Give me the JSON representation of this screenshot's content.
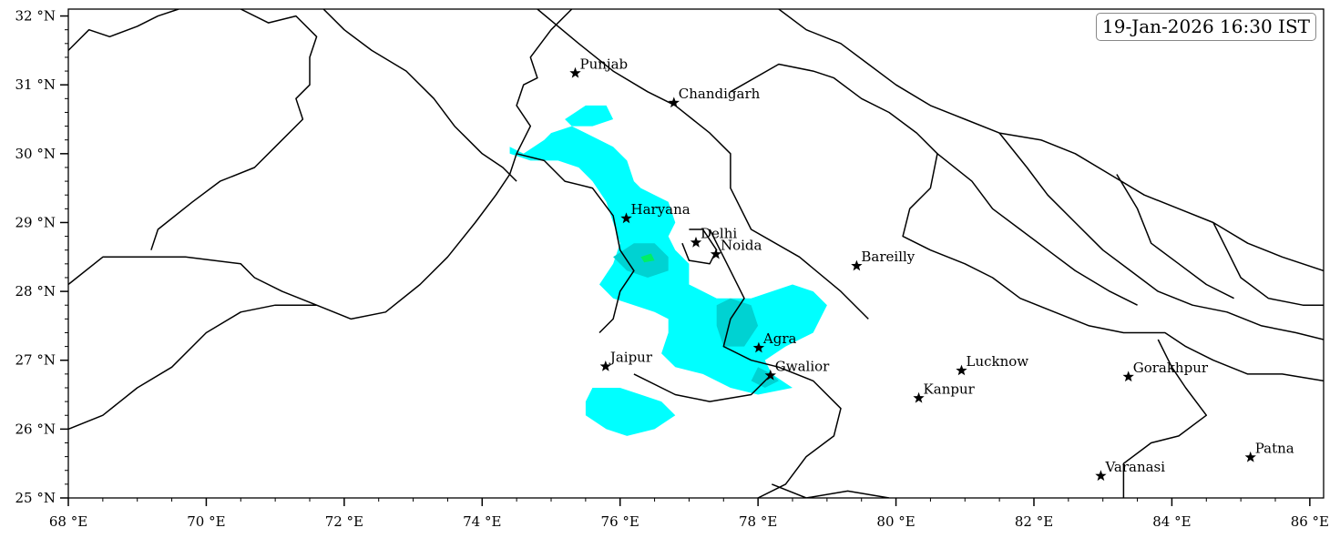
{
  "timestamp": "19-Jan-2026 16:30 IST",
  "map": {
    "lon_range": [
      68,
      86.2
    ],
    "lat_range": [
      25,
      32.1
    ],
    "x_ticks": [
      {
        "value": 68,
        "label": "68 °E"
      },
      {
        "value": 70,
        "label": "70 °E"
      },
      {
        "value": 72,
        "label": "72 °E"
      },
      {
        "value": 74,
        "label": "74 °E"
      },
      {
        "value": 76,
        "label": "76 °E"
      },
      {
        "value": 78,
        "label": "78 °E"
      },
      {
        "value": 80,
        "label": "80 °E"
      },
      {
        "value": 82,
        "label": "82 °E"
      },
      {
        "value": 84,
        "label": "84 °E"
      },
      {
        "value": 86,
        "label": "86 °E"
      }
    ],
    "y_ticks": [
      {
        "value": 25,
        "label": "25 °N"
      },
      {
        "value": 26,
        "label": "26 °N"
      },
      {
        "value": 27,
        "label": "27 °N"
      },
      {
        "value": 28,
        "label": "28 °N"
      },
      {
        "value": 29,
        "label": "29 °N"
      },
      {
        "value": 30,
        "label": "30 °N"
      },
      {
        "value": 31,
        "label": "31 °N"
      },
      {
        "value": 32,
        "label": "32 °N"
      }
    ],
    "colors": {
      "light": "#00ffff",
      "moderate": "#00d2d2",
      "heavy": "#00ee66",
      "boundary": "#000000"
    }
  },
  "cities": [
    {
      "name": "Punjab",
      "lon": 75.35,
      "lat": 31.17
    },
    {
      "name": "Chandigarh",
      "lon": 76.78,
      "lat": 30.74
    },
    {
      "name": "Haryana",
      "lon": 76.09,
      "lat": 29.06
    },
    {
      "name": "Delhi",
      "lon": 77.1,
      "lat": 28.71
    },
    {
      "name": "Noida",
      "lon": 77.39,
      "lat": 28.54
    },
    {
      "name": "Bareilly",
      "lon": 79.43,
      "lat": 28.37
    },
    {
      "name": "Agra",
      "lon": 78.01,
      "lat": 27.18
    },
    {
      "name": "Jaipur",
      "lon": 75.79,
      "lat": 26.91
    },
    {
      "name": "Gwalior",
      "lon": 78.18,
      "lat": 26.78
    },
    {
      "name": "Lucknow",
      "lon": 80.95,
      "lat": 26.85
    },
    {
      "name": "Kanpur",
      "lon": 80.33,
      "lat": 26.45
    },
    {
      "name": "Gorakhpur",
      "lon": 83.37,
      "lat": 26.76
    },
    {
      "name": "Varanasi",
      "lon": 82.97,
      "lat": 25.32
    },
    {
      "name": "Patna",
      "lon": 85.14,
      "lat": 25.59
    }
  ],
  "rain_areas": {
    "light": [
      [
        [
          74.4,
          30.1
        ],
        [
          74.6,
          30.0
        ],
        [
          74.9,
          30.2
        ],
        [
          75.0,
          30.3
        ],
        [
          75.3,
          30.4
        ],
        [
          75.5,
          30.3
        ],
        [
          75.9,
          30.1
        ],
        [
          76.1,
          29.9
        ],
        [
          76.2,
          29.6
        ],
        [
          76.3,
          29.5
        ],
        [
          76.5,
          29.4
        ],
        [
          76.7,
          29.3
        ],
        [
          76.8,
          29.0
        ],
        [
          76.7,
          28.8
        ],
        [
          76.8,
          28.6
        ],
        [
          77.0,
          28.4
        ],
        [
          77.0,
          28.1
        ],
        [
          77.4,
          27.9
        ],
        [
          77.6,
          27.9
        ],
        [
          77.9,
          27.9
        ],
        [
          78.2,
          28.0
        ],
        [
          78.5,
          28.1
        ],
        [
          78.8,
          28.0
        ],
        [
          79.0,
          27.8
        ],
        [
          78.9,
          27.6
        ],
        [
          78.8,
          27.4
        ],
        [
          78.6,
          27.3
        ],
        [
          78.4,
          27.2
        ],
        [
          78.1,
          27.0
        ],
        [
          78.2,
          26.8
        ],
        [
          78.5,
          26.6
        ],
        [
          78.0,
          26.5
        ],
        [
          77.6,
          26.6
        ],
        [
          77.2,
          26.8
        ],
        [
          76.8,
          26.9
        ],
        [
          76.6,
          27.1
        ],
        [
          76.7,
          27.4
        ],
        [
          76.7,
          27.6
        ],
        [
          76.5,
          27.7
        ],
        [
          76.2,
          27.8
        ],
        [
          75.9,
          27.9
        ],
        [
          75.7,
          28.1
        ],
        [
          75.9,
          28.4
        ],
        [
          76.0,
          28.7
        ],
        [
          75.9,
          29.0
        ],
        [
          75.8,
          29.3
        ],
        [
          75.6,
          29.6
        ],
        [
          75.4,
          29.8
        ],
        [
          75.1,
          29.9
        ],
        [
          74.7,
          29.9
        ],
        [
          74.4,
          30.0
        ]
      ],
      [
        [
          75.2,
          30.5
        ],
        [
          75.5,
          30.7
        ],
        [
          75.8,
          30.7
        ],
        [
          75.9,
          30.5
        ],
        [
          75.6,
          30.4
        ],
        [
          75.3,
          30.4
        ]
      ],
      [
        [
          75.6,
          26.6
        ],
        [
          76.0,
          26.6
        ],
        [
          76.3,
          26.5
        ],
        [
          76.6,
          26.4
        ],
        [
          76.8,
          26.2
        ],
        [
          76.5,
          26.0
        ],
        [
          76.1,
          25.9
        ],
        [
          75.8,
          26.0
        ],
        [
          75.5,
          26.2
        ],
        [
          75.5,
          26.4
        ]
      ]
    ],
    "moderate": [
      [
        [
          75.9,
          28.5
        ],
        [
          76.2,
          28.7
        ],
        [
          76.5,
          28.7
        ],
        [
          76.7,
          28.5
        ],
        [
          76.7,
          28.3
        ],
        [
          76.4,
          28.2
        ],
        [
          76.1,
          28.3
        ]
      ],
      [
        [
          77.6,
          27.9
        ],
        [
          77.9,
          27.8
        ],
        [
          78.0,
          27.5
        ],
        [
          77.8,
          27.2
        ],
        [
          77.5,
          27.2
        ],
        [
          77.4,
          27.5
        ],
        [
          77.4,
          27.8
        ]
      ],
      [
        [
          78.0,
          26.9
        ],
        [
          78.2,
          26.8
        ],
        [
          78.3,
          26.7
        ],
        [
          78.1,
          26.6
        ],
        [
          77.9,
          26.7
        ]
      ]
    ],
    "heavy": [
      [
        [
          76.3,
          28.5
        ],
        [
          76.45,
          28.55
        ],
        [
          76.5,
          28.45
        ],
        [
          76.35,
          28.42
        ]
      ]
    ]
  },
  "boundaries": [
    [
      [
        68.0,
        31.5
      ],
      [
        68.3,
        31.8
      ],
      [
        68.6,
        31.7
      ],
      [
        69.0,
        31.85
      ],
      [
        69.3,
        32.0
      ],
      [
        69.6,
        32.1
      ]
    ],
    [
      [
        70.5,
        32.1
      ],
      [
        70.9,
        31.9
      ],
      [
        71.3,
        32.0
      ],
      [
        71.6,
        31.7
      ],
      [
        71.5,
        31.4
      ],
      [
        71.5,
        31.0
      ],
      [
        71.3,
        30.8
      ],
      [
        71.4,
        30.5
      ],
      [
        71.0,
        30.1
      ],
      [
        70.7,
        29.8
      ],
      [
        70.2,
        29.6
      ],
      [
        69.8,
        29.3
      ],
      [
        69.3,
        28.9
      ],
      [
        69.2,
        28.6
      ]
    ],
    [
      [
        68.0,
        28.1
      ],
      [
        68.5,
        28.5
      ],
      [
        69.0,
        28.5
      ],
      [
        69.7,
        28.5
      ],
      [
        70.5,
        28.4
      ],
      [
        70.7,
        28.2
      ],
      [
        71.1,
        28.0
      ],
      [
        71.6,
        27.8
      ],
      [
        72.1,
        27.6
      ],
      [
        72.6,
        27.7
      ],
      [
        73.1,
        28.1
      ],
      [
        73.5,
        28.5
      ],
      [
        73.9,
        29.0
      ],
      [
        74.2,
        29.4
      ],
      [
        74.4,
        29.7
      ],
      [
        74.5,
        30.0
      ],
      [
        74.6,
        30.2
      ],
      [
        74.7,
        30.4
      ],
      [
        74.5,
        30.7
      ],
      [
        74.6,
        31.0
      ],
      [
        74.8,
        31.1
      ],
      [
        74.7,
        31.4
      ],
      [
        75.0,
        31.8
      ],
      [
        75.3,
        32.1
      ]
    ],
    [
      [
        68.0,
        26.0
      ],
      [
        68.5,
        26.2
      ],
      [
        69.0,
        26.6
      ],
      [
        69.5,
        26.9
      ],
      [
        70.0,
        27.4
      ],
      [
        70.5,
        27.7
      ],
      [
        71.0,
        27.8
      ],
      [
        71.6,
        27.8
      ]
    ],
    [
      [
        71.7,
        32.1
      ],
      [
        72.0,
        31.8
      ],
      [
        72.4,
        31.5
      ],
      [
        72.9,
        31.2
      ],
      [
        73.3,
        30.8
      ],
      [
        73.6,
        30.4
      ],
      [
        74.0,
        30.0
      ],
      [
        74.3,
        29.8
      ],
      [
        74.5,
        29.6
      ]
    ],
    [
      [
        74.8,
        32.1
      ],
      [
        75.4,
        31.6
      ],
      [
        75.9,
        31.2
      ],
      [
        76.4,
        30.9
      ],
      [
        76.8,
        30.7
      ],
      [
        77.3,
        30.3
      ],
      [
        77.6,
        30.0
      ],
      [
        77.6,
        29.5
      ],
      [
        77.9,
        28.9
      ],
      [
        78.6,
        28.5
      ],
      [
        79.2,
        28.0
      ],
      [
        79.6,
        27.6
      ]
    ],
    [
      [
        74.5,
        30.0
      ],
      [
        74.9,
        29.9
      ],
      [
        75.2,
        29.6
      ],
      [
        75.6,
        29.5
      ],
      [
        75.9,
        29.1
      ],
      [
        76.0,
        28.6
      ],
      [
        76.2,
        28.3
      ],
      [
        76.0,
        28.0
      ],
      [
        75.9,
        27.6
      ],
      [
        75.7,
        27.4
      ]
    ],
    [
      [
        77.0,
        28.9
      ],
      [
        77.2,
        28.9
      ],
      [
        77.4,
        28.6
      ],
      [
        77.3,
        28.4
      ],
      [
        77.0,
        28.45
      ],
      [
        76.9,
        28.7
      ]
    ],
    [
      [
        77.3,
        28.9
      ],
      [
        77.6,
        28.3
      ],
      [
        77.8,
        27.9
      ],
      [
        77.6,
        27.6
      ],
      [
        77.5,
        27.2
      ],
      [
        77.9,
        27.0
      ],
      [
        78.3,
        26.9
      ],
      [
        78.8,
        26.7
      ],
      [
        79.2,
        26.3
      ],
      [
        79.1,
        25.9
      ],
      [
        78.7,
        25.6
      ],
      [
        78.4,
        25.2
      ],
      [
        78.0,
        25.0
      ]
    ],
    [
      [
        76.2,
        26.8
      ],
      [
        76.8,
        26.5
      ],
      [
        77.3,
        26.4
      ],
      [
        77.9,
        26.5
      ],
      [
        78.2,
        26.8
      ]
    ],
    [
      [
        77.6,
        30.9
      ],
      [
        78.3,
        31.3
      ],
      [
        78.8,
        31.2
      ],
      [
        79.1,
        31.1
      ],
      [
        79.5,
        30.8
      ],
      [
        79.9,
        30.6
      ],
      [
        80.3,
        30.3
      ],
      [
        80.6,
        30.0
      ],
      [
        80.5,
        29.5
      ],
      [
        80.2,
        29.2
      ],
      [
        80.1,
        28.8
      ],
      [
        80.5,
        28.6
      ],
      [
        81.0,
        28.4
      ],
      [
        81.4,
        28.2
      ],
      [
        81.8,
        27.9
      ],
      [
        82.3,
        27.7
      ],
      [
        82.8,
        27.5
      ],
      [
        83.3,
        27.4
      ],
      [
        83.9,
        27.4
      ],
      [
        84.2,
        27.2
      ],
      [
        84.6,
        27.0
      ],
      [
        85.1,
        26.8
      ],
      [
        85.6,
        26.8
      ],
      [
        86.2,
        26.7
      ]
    ],
    [
      [
        78.3,
        32.1
      ],
      [
        78.7,
        31.8
      ],
      [
        79.2,
        31.6
      ],
      [
        79.6,
        31.3
      ],
      [
        80.0,
        31.0
      ],
      [
        80.5,
        30.7
      ],
      [
        81.0,
        30.5
      ],
      [
        81.5,
        30.3
      ],
      [
        82.1,
        30.2
      ],
      [
        82.6,
        30.0
      ],
      [
        83.1,
        29.7
      ],
      [
        83.6,
        29.4
      ],
      [
        84.1,
        29.2
      ],
      [
        84.6,
        29.0
      ],
      [
        85.1,
        28.7
      ],
      [
        85.6,
        28.5
      ],
      [
        86.2,
        28.3
      ]
    ],
    [
      [
        80.6,
        30.0
      ],
      [
        81.1,
        29.6
      ],
      [
        81.4,
        29.2
      ],
      [
        81.8,
        28.9
      ],
      [
        82.2,
        28.6
      ],
      [
        82.6,
        28.3
      ],
      [
        83.1,
        28.0
      ],
      [
        83.5,
        27.8
      ]
    ],
    [
      [
        81.5,
        30.3
      ],
      [
        81.9,
        29.8
      ],
      [
        82.2,
        29.4
      ],
      [
        82.6,
        29.0
      ],
      [
        83.0,
        28.6
      ],
      [
        83.4,
        28.3
      ],
      [
        83.8,
        28.0
      ],
      [
        84.3,
        27.8
      ],
      [
        84.8,
        27.7
      ],
      [
        85.3,
        27.5
      ],
      [
        85.8,
        27.4
      ],
      [
        86.2,
        27.3
      ]
    ],
    [
      [
        83.2,
        29.7
      ],
      [
        83.5,
        29.2
      ],
      [
        83.7,
        28.7
      ],
      [
        84.1,
        28.4
      ],
      [
        84.5,
        28.1
      ],
      [
        84.9,
        27.9
      ]
    ],
    [
      [
        84.6,
        29.0
      ],
      [
        84.8,
        28.6
      ],
      [
        85.0,
        28.2
      ],
      [
        85.4,
        27.9
      ],
      [
        85.9,
        27.8
      ],
      [
        86.2,
        27.8
      ]
    ],
    [
      [
        78.2,
        25.2
      ],
      [
        78.7,
        25.0
      ],
      [
        79.3,
        25.1
      ],
      [
        79.9,
        25.0
      ]
    ],
    [
      [
        83.3,
        25.0
      ],
      [
        83.3,
        25.5
      ],
      [
        83.7,
        25.8
      ],
      [
        84.1,
        25.9
      ],
      [
        84.5,
        26.2
      ],
      [
        84.2,
        26.6
      ],
      [
        84.0,
        26.9
      ],
      [
        83.8,
        27.3
      ]
    ]
  ]
}
